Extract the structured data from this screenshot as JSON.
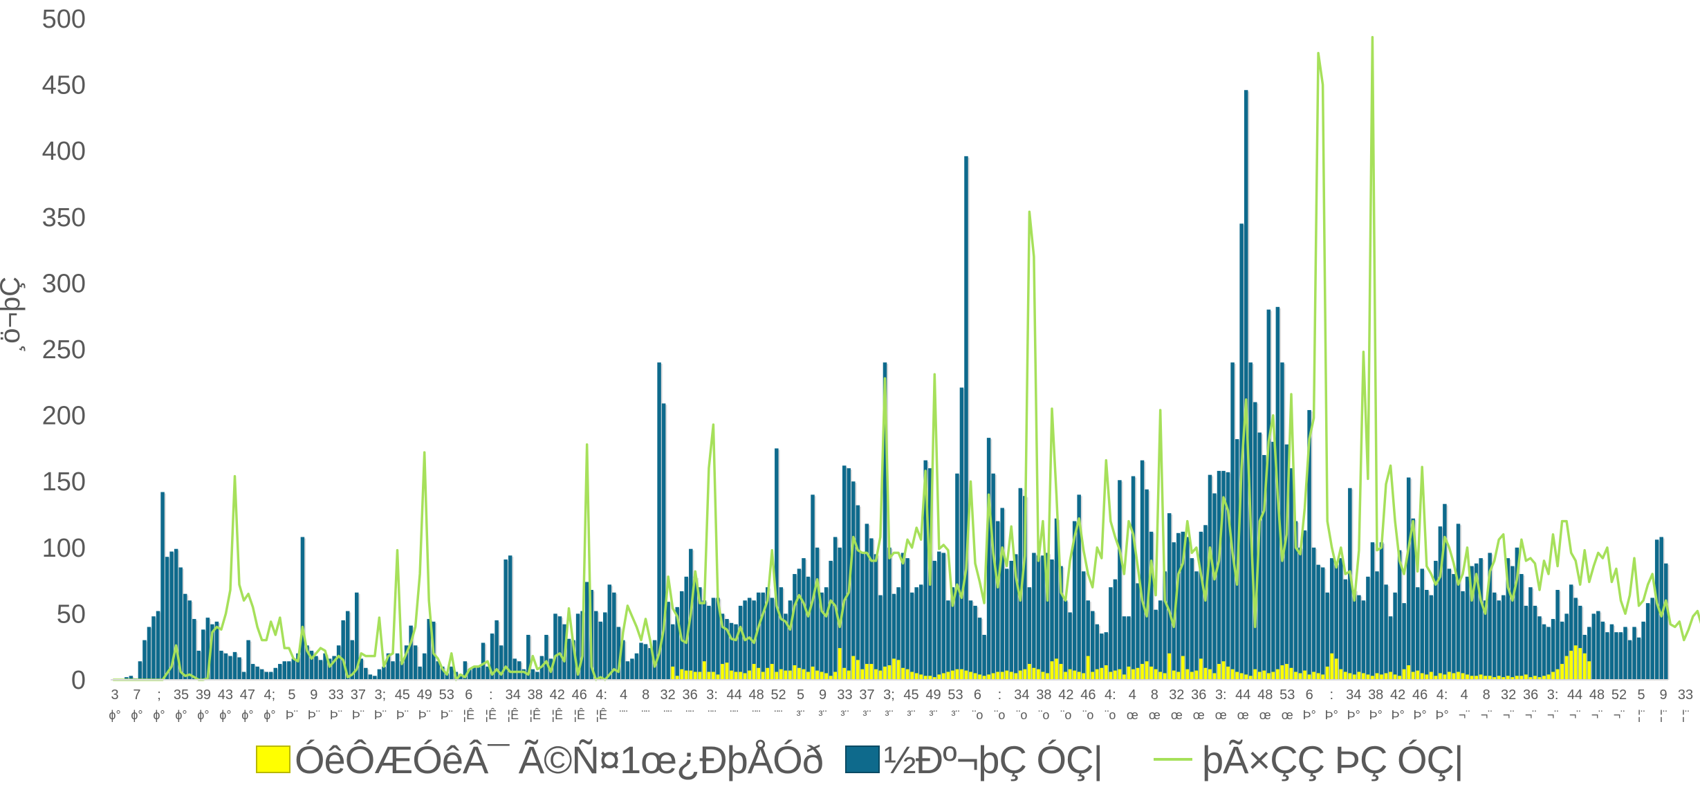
{
  "chart_data": {
    "type": "bar",
    "title": "",
    "ylabel": "¸ö¬þÇ",
    "xlabel": "",
    "ylim": [
      0,
      500
    ],
    "yticks": [
      0,
      50,
      100,
      150,
      200,
      250,
      300,
      350,
      400,
      450,
      500
    ],
    "grid": false,
    "legend_position": "bottom",
    "colors": {
      "series1": "#FFFF00",
      "series2": "#0E6A8C",
      "series3": "#A6E05A",
      "axis": "#D9D9D9",
      "text": "#595959"
    },
    "x_tick_labels": [
      {
        "top": "3",
        "bottom": "ϕ°"
      },
      {
        "top": "7",
        "bottom": "ϕ°"
      },
      {
        "top": ";",
        "bottom": "ϕ°"
      },
      {
        "top": "35",
        "bottom": "ϕ°"
      },
      {
        "top": "39",
        "bottom": "ϕ°"
      },
      {
        "top": "43",
        "bottom": "ϕ°"
      },
      {
        "top": "47",
        "bottom": "ϕ°"
      },
      {
        "top": "4;",
        "bottom": "ϕ°"
      },
      {
        "top": "5",
        "bottom": "Þ¨"
      },
      {
        "top": "9",
        "bottom": "Þ¨"
      },
      {
        "top": "33",
        "bottom": "Þ¨"
      },
      {
        "top": "37",
        "bottom": "Þ¨"
      },
      {
        "top": "3;",
        "bottom": "Þ¨"
      },
      {
        "top": "45",
        "bottom": "Þ¨"
      },
      {
        "top": "49",
        "bottom": "Þ¨"
      },
      {
        "top": "53",
        "bottom": "Þ¨"
      },
      {
        "top": "6",
        "bottom": "¦Ê"
      },
      {
        "top": ":",
        "bottom": "¦Ê"
      },
      {
        "top": "34",
        "bottom": "¦Ê"
      },
      {
        "top": "38",
        "bottom": "¦Ê"
      },
      {
        "top": "42",
        "bottom": "¦Ê"
      },
      {
        "top": "46",
        "bottom": "¦Ê"
      },
      {
        "top": "4:",
        "bottom": "¦Ê"
      },
      {
        "top": "4",
        "bottom": "¨¨"
      },
      {
        "top": "8",
        "bottom": "¨¨"
      },
      {
        "top": "32",
        "bottom": "¨¨"
      },
      {
        "top": "36",
        "bottom": "¨¨"
      },
      {
        "top": "3:",
        "bottom": "¨¨"
      },
      {
        "top": "44",
        "bottom": "¨¨"
      },
      {
        "top": "48",
        "bottom": "¨¨"
      },
      {
        "top": "52",
        "bottom": "¨¨"
      },
      {
        "top": "5",
        "bottom": "³¨"
      },
      {
        "top": "9",
        "bottom": "³¨"
      },
      {
        "top": "33",
        "bottom": "³¨"
      },
      {
        "top": "37",
        "bottom": "³¨"
      },
      {
        "top": "3;",
        "bottom": "³¨"
      },
      {
        "top": "45",
        "bottom": "³¨"
      },
      {
        "top": "49",
        "bottom": "³¨"
      },
      {
        "top": "53",
        "bottom": "³¨"
      },
      {
        "top": "6",
        "bottom": "¨o"
      },
      {
        "top": ":",
        "bottom": "¨o"
      },
      {
        "top": "34",
        "bottom": "¨o"
      },
      {
        "top": "38",
        "bottom": "¨o"
      },
      {
        "top": "42",
        "bottom": "¨o"
      },
      {
        "top": "46",
        "bottom": "¨o"
      },
      {
        "top": "4:",
        "bottom": "¨o"
      },
      {
        "top": "4",
        "bottom": "œ"
      },
      {
        "top": "8",
        "bottom": "œ"
      },
      {
        "top": "32",
        "bottom": "œ"
      },
      {
        "top": "36",
        "bottom": "œ"
      },
      {
        "top": "3:",
        "bottom": "œ"
      },
      {
        "top": "44",
        "bottom": "œ"
      },
      {
        "top": "48",
        "bottom": "œ"
      },
      {
        "top": "53",
        "bottom": "œ"
      },
      {
        "top": "6",
        "bottom": "Þ°"
      },
      {
        "top": ":",
        "bottom": "Þ°"
      },
      {
        "top": "34",
        "bottom": "Þ°"
      },
      {
        "top": "38",
        "bottom": "Þ°"
      },
      {
        "top": "42",
        "bottom": "Þ°"
      },
      {
        "top": "46",
        "bottom": "Þ°"
      },
      {
        "top": "4:",
        "bottom": "Þ°"
      },
      {
        "top": "4",
        "bottom": "¬¨"
      },
      {
        "top": "8",
        "bottom": "¬¨"
      },
      {
        "top": "32",
        "bottom": "¬¨"
      },
      {
        "top": "36",
        "bottom": "¬¨"
      },
      {
        "top": "3:",
        "bottom": "¬¨"
      },
      {
        "top": "44",
        "bottom": "¬¨"
      },
      {
        "top": "48",
        "bottom": "¬¨"
      },
      {
        "top": "52",
        "bottom": "¬¨"
      },
      {
        "top": "5",
        "bottom": "¦¨"
      },
      {
        "top": "9",
        "bottom": "¦¨"
      },
      {
        "top": "33",
        "bottom": "¦¨"
      }
    ],
    "series": [
      {
        "name": "ÓêÔÆÓêÂ¯ Ã©Ñ¤1œ¿ÐþÅÓð",
        "type": "bar",
        "values": [
          0,
          0,
          0,
          0,
          0,
          0,
          0,
          0,
          0,
          0,
          0,
          0,
          0,
          0,
          0,
          0,
          0,
          0,
          0,
          0,
          0,
          0,
          0,
          0,
          0,
          0,
          0,
          0,
          0,
          0,
          0,
          0,
          0,
          0,
          0,
          0,
          0,
          0,
          0,
          0,
          0,
          0,
          0,
          0,
          0,
          0,
          0,
          0,
          0,
          0,
          0,
          0,
          0,
          0,
          0,
          0,
          0,
          0,
          0,
          0,
          0,
          0,
          0,
          0,
          0,
          0,
          0,
          0,
          0,
          0,
          0,
          0,
          0,
          0,
          0,
          0,
          0,
          0,
          0,
          0,
          0,
          0,
          0,
          0,
          0,
          0,
          0,
          0,
          0,
          0,
          0,
          0,
          0,
          0,
          0,
          0,
          0,
          0,
          0,
          0,
          0,
          0,
          0,
          0,
          0,
          0,
          0,
          0,
          0,
          0,
          0,
          0,
          0,
          0,
          0,
          0,
          0,
          0,
          0,
          0,
          0,
          0,
          0,
          0,
          10,
          3,
          8,
          7,
          7,
          6,
          6,
          14,
          6,
          6,
          4,
          12,
          13,
          7,
          6,
          6,
          5,
          7,
          12,
          9,
          6,
          9,
          12,
          6,
          8,
          7,
          7,
          11,
          9,
          8,
          6,
          10,
          7,
          6,
          5,
          3,
          6,
          24,
          9,
          7,
          18,
          15,
          8,
          12,
          12,
          8,
          7,
          10,
          11,
          16,
          15,
          9,
          8,
          6,
          5,
          4,
          3,
          3,
          2,
          4,
          5,
          6,
          7,
          8,
          8,
          7,
          6,
          5,
          4,
          3,
          4,
          5,
          6,
          6,
          7,
          6,
          5,
          7,
          8,
          12,
          9,
          8,
          6,
          5,
          14,
          16,
          12,
          6,
          8,
          7,
          6,
          5,
          18,
          6,
          8,
          9,
          11,
          6,
          7,
          8,
          4,
          10,
          8,
          9,
          12,
          14,
          10,
          8,
          6,
          5,
          20,
          7,
          6,
          18,
          8,
          6,
          7,
          16,
          9,
          8,
          5,
          12,
          14,
          10,
          8,
          6,
          5,
          4,
          3,
          8,
          6,
          7,
          5,
          6,
          8,
          11,
          12,
          9,
          6,
          5,
          7,
          4,
          6,
          5,
          4,
          10,
          20,
          16,
          8,
          6,
          5,
          4,
          6,
          5,
          4,
          3,
          5,
          4,
          5,
          6,
          4,
          3,
          8,
          11,
          6,
          7,
          5,
          4,
          6,
          3,
          5,
          4,
          6,
          5,
          6,
          5,
          4,
          3,
          3,
          4,
          3,
          3,
          2,
          3,
          2,
          3,
          2,
          3,
          3,
          4,
          2,
          3,
          2,
          3,
          4,
          6,
          8,
          12,
          18,
          22,
          26,
          24,
          20,
          14
        ]
      },
      {
        "name": "½Ðº¬þÇ ÓÇ|",
        "type": "bar",
        "values": [
          0,
          0,
          0,
          2,
          3,
          1,
          14,
          30,
          40,
          48,
          52,
          142,
          93,
          97,
          99,
          85,
          65,
          60,
          46,
          22,
          38,
          47,
          42,
          44,
          22,
          20,
          18,
          21,
          17,
          6,
          30,
          12,
          10,
          8,
          6,
          6,
          9,
          12,
          14,
          14,
          16,
          20,
          108,
          26,
          22,
          18,
          15,
          20,
          16,
          18,
          26,
          45,
          52,
          30,
          66,
          16,
          9,
          4,
          3,
          8,
          10,
          20,
          14,
          20,
          14,
          26,
          41,
          26,
          10,
          20,
          46,
          44,
          14,
          10,
          5,
          10,
          6,
          4,
          14,
          8,
          10,
          10,
          28,
          10,
          35,
          45,
          26,
          91,
          94,
          16,
          14,
          8,
          34,
          8,
          6,
          18,
          34,
          16,
          50,
          48,
          42,
          31,
          30,
          50,
          52,
          74,
          68,
          52,
          44,
          51,
          72,
          66,
          40,
          30,
          14,
          16,
          20,
          28,
          27,
          24,
          30,
          240,
          209,
          59,
          42,
          55,
          67,
          78,
          99,
          78,
          70,
          60,
          56,
          62,
          62,
          50,
          46,
          43,
          42,
          56,
          60,
          62,
          60,
          66,
          66,
          70,
          62,
          175,
          70,
          50,
          60,
          80,
          84,
          92,
          78,
          140,
          100,
          66,
          70,
          90,
          108,
          100,
          162,
          160,
          150,
          132,
          96,
          118,
          107,
          95,
          64,
          240,
          100,
          65,
          70,
          96,
          92,
          66,
          70,
          72,
          166,
          160,
          90,
          97,
          96,
          60,
          70,
          156,
          221,
          396,
          60,
          56,
          47,
          34,
          183,
          156,
          120,
          130,
          84,
          90,
          95,
          145,
          139,
          70,
          96,
          94,
          94,
          96,
          91,
          122,
          86,
          60,
          51,
          120,
          140,
          82,
          60,
          52,
          42,
          35,
          36,
          70,
          76,
          151,
          48,
          48,
          154,
          73,
          166,
          144,
          112,
          53,
          60,
          82,
          126,
          104,
          111,
          112,
          108,
          92,
          82,
          112,
          117,
          155,
          141,
          158,
          158,
          157,
          240,
          182,
          345,
          446,
          240,
          210,
          187,
          170,
          280,
          180,
          282,
          240,
          178,
          160,
          120,
          100,
          113,
          204,
          100,
          87,
          85,
          66,
          92,
          88,
          92,
          76,
          145,
          68,
          64,
          60,
          78,
          104,
          82,
          104,
          72,
          48,
          66,
          98,
          58,
          153,
          122,
          70,
          84,
          68,
          64,
          90,
          116,
          133,
          84,
          80,
          118,
          67,
          78,
          86,
          88,
          92,
          60,
          96,
          66,
          60,
          64,
          92,
          86,
          100,
          80,
          56,
          70,
          56,
          48,
          42,
          40,
          46,
          68,
          44,
          50,
          72,
          62,
          56,
          34,
          40,
          50,
          52,
          44,
          36,
          42,
          36,
          36,
          40,
          30,
          40,
          32,
          44,
          58,
          62,
          106,
          108,
          88
        ]
      },
      {
        "name": "þÃ×ÇÇ ÞÇ ÓÇ|",
        "type": "line",
        "values": [
          0,
          0,
          0,
          0,
          0,
          0,
          0,
          0,
          0,
          0,
          0,
          0,
          5,
          10,
          26,
          6,
          3,
          4,
          2,
          0,
          0,
          1,
          36,
          40,
          38,
          50,
          68,
          154,
          72,
          60,
          65,
          55,
          40,
          30,
          30,
          44,
          34,
          47,
          24,
          24,
          16,
          14,
          40,
          22,
          16,
          20,
          24,
          22,
          10,
          14,
          18,
          15,
          2,
          4,
          8,
          20,
          18,
          18,
          18,
          47,
          10,
          18,
          20,
          98,
          12,
          20,
          28,
          40,
          80,
          172,
          60,
          20,
          16,
          8,
          4,
          20,
          0,
          4,
          2,
          8,
          10,
          10,
          12,
          14,
          4,
          8,
          4,
          10,
          6,
          6,
          6,
          6,
          4,
          18,
          8,
          10,
          14,
          6,
          18,
          20,
          14,
          54,
          26,
          4,
          18,
          178,
          10,
          0,
          2,
          0,
          4,
          8,
          6,
          36,
          56,
          48,
          40,
          30,
          46,
          30,
          10,
          20,
          38,
          78,
          54,
          48,
          30,
          28,
          50,
          82,
          58,
          58,
          160,
          193,
          60,
          40,
          38,
          31,
          30,
          40,
          30,
          32,
          28,
          40,
          50,
          60,
          98,
          56,
          46,
          44,
          38,
          56,
          64,
          58,
          48,
          60,
          76,
          52,
          48,
          60,
          56,
          40,
          60,
          66,
          108,
          98,
          96,
          96,
          90,
          90,
          108,
          228,
          92,
          96,
          96,
          88,
          106,
          100,
          115,
          106,
          158,
          72,
          231,
          99,
          102,
          98,
          56,
          72,
          62,
          84,
          150,
          88,
          74,
          58,
          140,
          96,
          70,
          100,
          86,
          116,
          78,
          60,
          94,
          354,
          320,
          90,
          120,
          60,
          205,
          140,
          66,
          60,
          90,
          108,
          122,
          98,
          80,
          70,
          100,
          92,
          166,
          120,
          108,
          98,
          80,
          120,
          110,
          86,
          60,
          48,
          90,
          64,
          204,
          60,
          52,
          40,
          80,
          88,
          120,
          96,
          100,
          80,
          60,
          100,
          76,
          90,
          138,
          128,
          96,
          72,
          160,
          212,
          120,
          40,
          120,
          128,
          180,
          200,
          140,
          90,
          110,
          216,
          100,
          95,
          130,
          182,
          198,
          474,
          450,
          120,
          100,
          85,
          100,
          80,
          82,
          60,
          98,
          248,
          152,
          486,
          98,
          100,
          148,
          162,
          120,
          90,
          80,
          100,
          120,
          82,
          161,
          86,
          80,
          72,
          78,
          108,
          100,
          88,
          72,
          80,
          100,
          60,
          80,
          60,
          50,
          82,
          90,
          106,
          110,
          70,
          60,
          76,
          106,
          90,
          92,
          88,
          68,
          90,
          80,
          110,
          86,
          120,
          120,
          96,
          90,
          72,
          98,
          74,
          86,
          96,
          92,
          100,
          74,
          84,
          60,
          50,
          64,
          92,
          56,
          60,
          72,
          80,
          58,
          48,
          60,
          42,
          40,
          44,
          30,
          38,
          48,
          52,
          40,
          44,
          88,
          42,
          30,
          38,
          40,
          44,
          50,
          58,
          56,
          22
        ]
      }
    ]
  },
  "legend": {
    "items": [
      {
        "label": "ÓêÔÆÓêÂ¯ Ã©Ñ¤1œ¿ÐþÅÓð",
        "color": "#FFFF00"
      },
      {
        "label": "½Ðº¬þÇ ÓÇ|",
        "color": "#0E6A8C"
      },
      {
        "label": "þÃ×ÇÇ ÞÇ ÓÇ|",
        "color": "#A6E05A"
      }
    ]
  }
}
